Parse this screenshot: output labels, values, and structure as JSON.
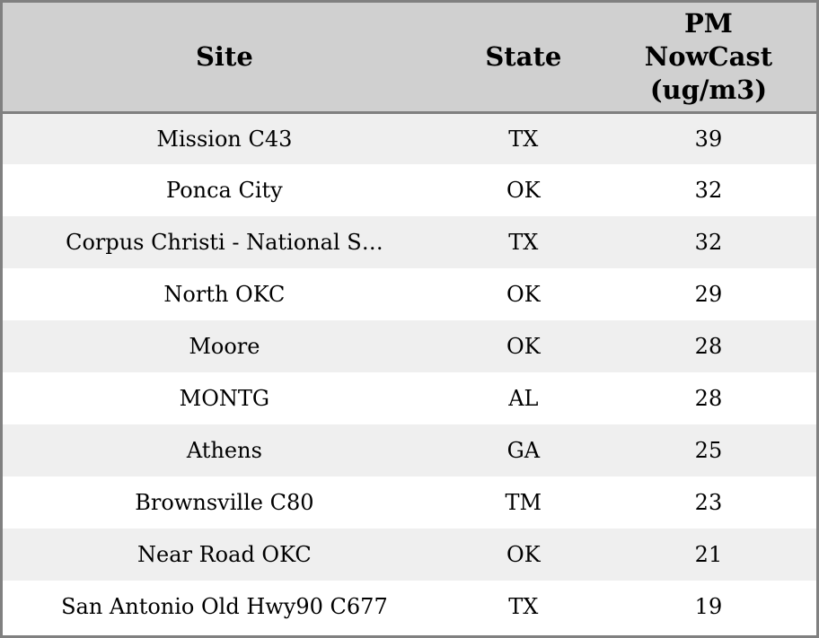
{
  "table": {
    "columns": [
      {
        "label": "Site"
      },
      {
        "label": "State"
      },
      {
        "label": "PM NowCast (ug/m3)",
        "lines": [
          "PM",
          "NowCast",
          "(ug/m3)"
        ]
      }
    ],
    "rows": [
      {
        "site": "Mission C43",
        "state": "TX",
        "pm_nowcast": "39"
      },
      {
        "site": "Ponca City",
        "state": "OK",
        "pm_nowcast": "32"
      },
      {
        "site": "Corpus Christi - National S…",
        "state": "TX",
        "pm_nowcast": "32"
      },
      {
        "site": "North OKC",
        "state": "OK",
        "pm_nowcast": "29"
      },
      {
        "site": "Moore",
        "state": "OK",
        "pm_nowcast": "28"
      },
      {
        "site": "MONTG",
        "state": "AL",
        "pm_nowcast": "28"
      },
      {
        "site": "Athens",
        "state": "GA",
        "pm_nowcast": "25"
      },
      {
        "site": "Brownsville C80",
        "state": "TM",
        "pm_nowcast": "23"
      },
      {
        "site": "Near Road OKC",
        "state": "OK",
        "pm_nowcast": "21"
      },
      {
        "site": "San Antonio Old Hwy90 C677",
        "state": "TX",
        "pm_nowcast": "19"
      }
    ]
  },
  "colors": {
    "header_bg": "#d0d0d0",
    "stripe_bg": "#efefef",
    "row_bg": "#ffffff",
    "border": "#808080",
    "text": "#000000"
  },
  "chart_data": {
    "type": "table",
    "title": "",
    "columns": [
      "Site",
      "State",
      "PM NowCast (ug/m3)"
    ],
    "rows": [
      [
        "Mission C43",
        "TX",
        39
      ],
      [
        "Ponca City",
        "OK",
        32
      ],
      [
        "Corpus Christi - National S…",
        "TX",
        32
      ],
      [
        "North OKC",
        "OK",
        29
      ],
      [
        "Moore",
        "OK",
        28
      ],
      [
        "MONTG",
        "AL",
        28
      ],
      [
        "Athens",
        "GA",
        25
      ],
      [
        "Brownsville C80",
        "TM",
        23
      ],
      [
        "Near Road OKC",
        "OK",
        21
      ],
      [
        "San Antonio Old Hwy90 C677",
        "TX",
        19
      ]
    ],
    "layout": {
      "striped": true,
      "stripe_start": "first-row",
      "grid": "outer-and-header-only"
    }
  }
}
